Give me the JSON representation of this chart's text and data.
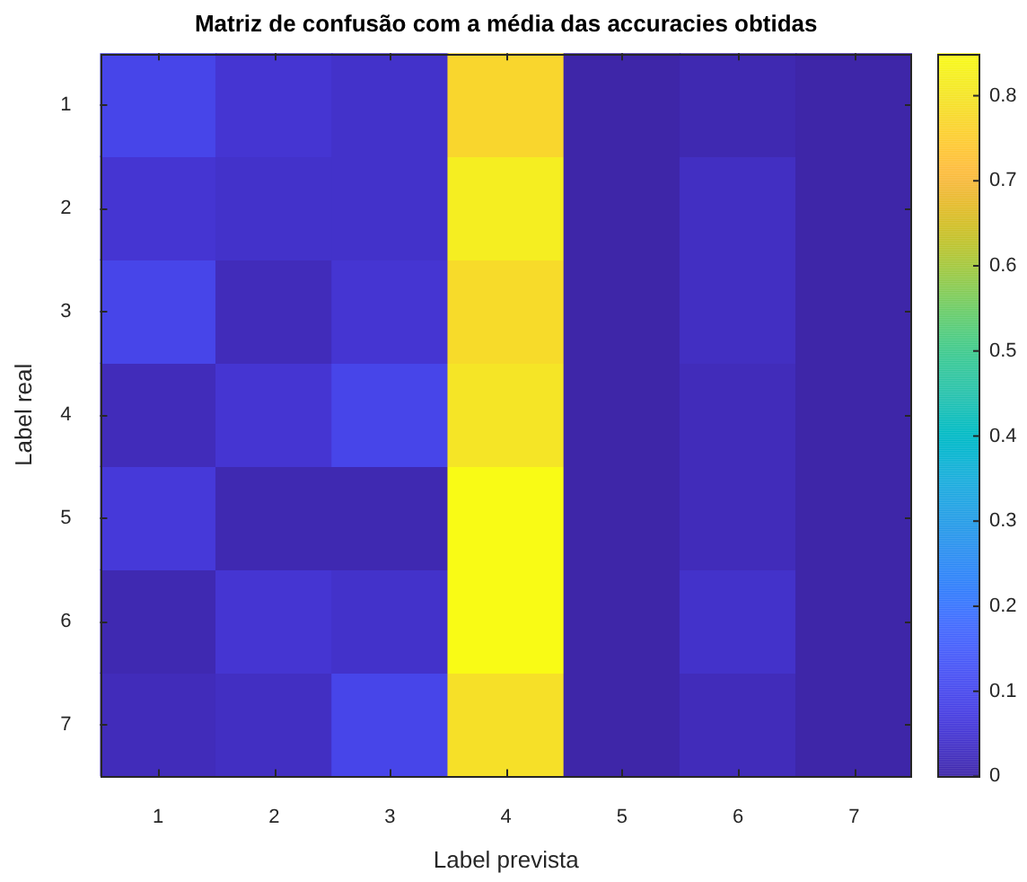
{
  "chart_data": {
    "type": "heatmap",
    "title": "Matriz de confusão com a média das accuracies obtidas",
    "xlabel": "Label prevista",
    "ylabel": "Label real",
    "categories": [
      "1",
      "2",
      "3",
      "4",
      "5",
      "6",
      "7"
    ],
    "y_categories": [
      "1",
      "2",
      "3",
      "4",
      "5",
      "6",
      "7"
    ],
    "cells": [
      [
        0.09,
        0.05,
        0.04,
        0.77,
        0,
        0.01,
        0
      ],
      [
        0.05,
        0.04,
        0.04,
        0.82,
        0,
        0.03,
        0
      ],
      [
        0.09,
        0.02,
        0.05,
        0.78,
        0,
        0.03,
        0
      ],
      [
        0.02,
        0.05,
        0.09,
        0.8,
        0,
        0.02,
        0
      ],
      [
        0.06,
        0.01,
        0.01,
        0.85,
        0,
        0.02,
        0
      ],
      [
        0.01,
        0.05,
        0.04,
        0.85,
        0,
        0.04,
        0
      ],
      [
        0.02,
        0.03,
        0.09,
        0.79,
        0,
        0.02,
        0
      ]
    ],
    "clim": [
      0,
      0.85
    ],
    "cticks": [
      0,
      0.1,
      0.2,
      0.3,
      0.4,
      0.5,
      0.6,
      0.7,
      0.8
    ]
  }
}
